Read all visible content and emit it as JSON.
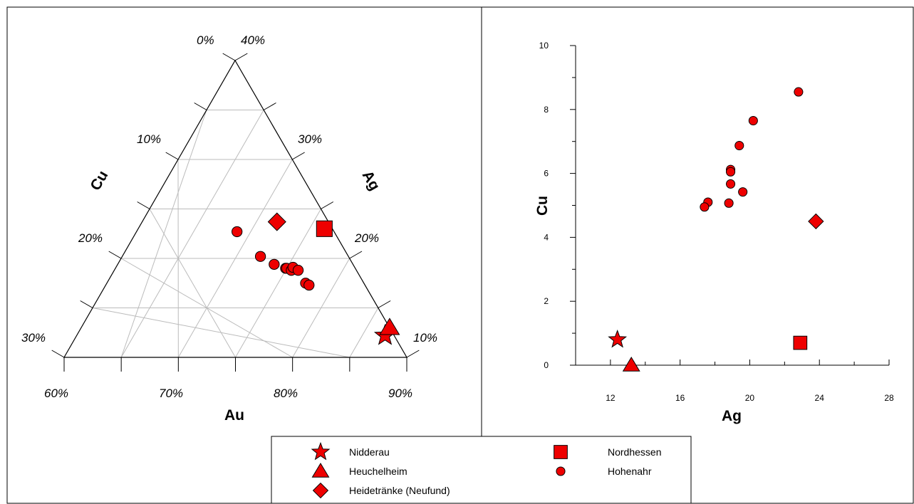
{
  "colors": {
    "marker_fill": "#ee0000",
    "marker_stroke": "#000000",
    "grid": "#bbbbbb"
  },
  "legend": [
    {
      "label": "Nidderau",
      "shape": "star"
    },
    {
      "label": "Heuchelheim",
      "shape": "triangle"
    },
    {
      "label": "Heidetränke (Neufund)",
      "shape": "diamond"
    },
    {
      "label": "Nordhessen",
      "shape": "square"
    },
    {
      "label": "Hohenahr",
      "shape": "circle"
    }
  ],
  "chart_data": [
    {
      "type": "scatter",
      "subtype": "ternary",
      "axes": {
        "bottom": {
          "label": "Au",
          "ticks": [
            "60%",
            "70%",
            "80%",
            "90%"
          ],
          "range": [
            60,
            90
          ]
        },
        "left": {
          "label": "Cu",
          "ticks": [
            "0%",
            "10%",
            "20%",
            "30%"
          ],
          "range": [
            0,
            30
          ]
        },
        "right": {
          "label": "Ag",
          "ticks": [
            "40%",
            "30%",
            "20%",
            "10%"
          ],
          "range": [
            40,
            10
          ]
        }
      },
      "grid": true,
      "series": [
        {
          "name": "Nidderau",
          "shape": "star",
          "points": [
            {
              "Au": 87.0,
              "Cu": 0.8,
              "Ag": 12.2
            }
          ]
        },
        {
          "name": "Heuchelheim",
          "shape": "triangle",
          "points": [
            {
              "Au": 87.0,
              "Cu": 0.0,
              "Ag": 13.0
            }
          ]
        },
        {
          "name": "Heidetränke (Neufund)",
          "shape": "diamond",
          "points": [
            {
              "Au": 71.8,
              "Cu": 4.5,
              "Ag": 23.7
            }
          ]
        },
        {
          "name": "Nordhessen",
          "shape": "square",
          "points": [
            {
              "Au": 76.3,
              "Cu": 0.7,
              "Ag": 23.0
            }
          ]
        },
        {
          "name": "Hohenahr",
          "shape": "circle",
          "points": [
            {
              "Au": 68.8,
              "Cu": 8.5,
              "Ag": 22.7
            },
            {
              "Au": 72.1,
              "Cu": 7.7,
              "Ag": 20.2
            },
            {
              "Au": 73.7,
              "Cu": 6.9,
              "Ag": 19.4
            },
            {
              "Au": 74.9,
              "Cu": 6.1,
              "Ag": 19.0
            },
            {
              "Au": 75.0,
              "Cu": 6.0,
              "Ag": 19.0
            },
            {
              "Au": 75.5,
              "Cu": 5.7,
              "Ag": 18.8
            },
            {
              "Au": 75.5,
              "Cu": 5.4,
              "Ag": 19.1
            },
            {
              "Au": 76.1,
              "Cu": 5.1,
              "Ag": 18.8
            },
            {
              "Au": 77.4,
              "Cu": 5.1,
              "Ag": 17.5
            },
            {
              "Au": 77.8,
              "Cu": 4.9,
              "Ag": 17.3
            }
          ]
        }
      ]
    },
    {
      "type": "scatter",
      "xlabel": "Ag",
      "ylabel": "Cu",
      "xlim": [
        10,
        28
      ],
      "ylim": [
        0,
        10
      ],
      "xticks": [
        12,
        16,
        20,
        24,
        28
      ],
      "yticks": [
        0,
        2,
        4,
        6,
        8,
        10
      ],
      "grid": false,
      "series": [
        {
          "name": "Nidderau",
          "shape": "star",
          "points": [
            [
              12.4,
              0.8
            ]
          ]
        },
        {
          "name": "Heuchelheim",
          "shape": "triangle",
          "points": [
            [
              13.2,
              0.0
            ]
          ]
        },
        {
          "name": "Heidetränke (Neufund)",
          "shape": "diamond",
          "points": [
            [
              23.8,
              4.5
            ]
          ]
        },
        {
          "name": "Nordhessen",
          "shape": "square",
          "points": [
            [
              22.9,
              0.7
            ]
          ]
        },
        {
          "name": "Hohenahr",
          "shape": "circle",
          "points": [
            [
              22.8,
              8.55
            ],
            [
              20.2,
              7.65
            ],
            [
              19.4,
              6.87
            ],
            [
              18.9,
              6.12
            ],
            [
              18.9,
              6.05
            ],
            [
              18.9,
              5.67
            ],
            [
              19.6,
              5.42
            ],
            [
              18.8,
              5.07
            ],
            [
              17.6,
              5.1
            ],
            [
              17.4,
              4.95
            ]
          ]
        }
      ]
    }
  ]
}
